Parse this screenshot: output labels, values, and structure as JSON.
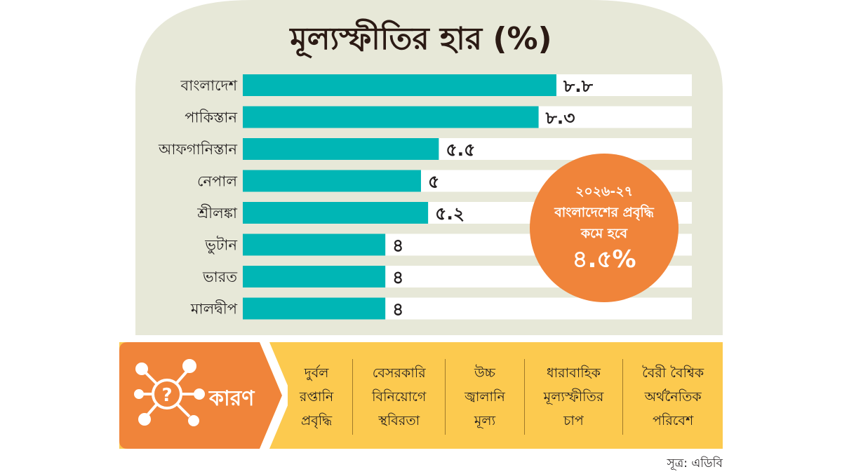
{
  "chart_data": {
    "type": "bar",
    "orientation": "horizontal",
    "title": "মূল্যস্ফীতির হার (%)",
    "categories": [
      "বাংলাদেশ",
      "পাকিস্তান",
      "আফগানিস্তান",
      "নেপাল",
      "শ্রীলঙ্কা",
      "ভুটান",
      "ভারত",
      "মালদ্বীপ"
    ],
    "values": [
      8.8,
      8.3,
      5.5,
      5,
      5.2,
      4,
      4,
      4
    ],
    "value_labels": [
      "৮.৮",
      "৮.৩",
      "৫.৫",
      "৫",
      "৫.২",
      "৪",
      "৪",
      "৪"
    ],
    "xlim": [
      0,
      12.6
    ],
    "grid": false,
    "colors": {
      "bar": "#00b6b5",
      "track": "#ffffff",
      "panel": "#e7e8d8"
    }
  },
  "callout": {
    "line1": "২০২৬-২৭",
    "line2": "বাংলাদেশের প্রবৃদ্ধি",
    "line3": "কমে হবে",
    "value": "৪.৫%",
    "color": "#f0843a"
  },
  "reasons": {
    "heading": "কারণ",
    "heading_icon": "question-network-icon",
    "colors": {
      "head": "#f0843a",
      "body": "#fcca4f"
    },
    "items": [
      {
        "lines": [
          "দুর্বল",
          "রপ্তানি",
          "প্রবৃদ্ধি"
        ]
      },
      {
        "lines": [
          "বেসরকারি",
          "বিনিয়োগে",
          "স্থবিরতা"
        ]
      },
      {
        "lines": [
          "উচ্চ",
          "জ্বালানি",
          "মূল্য"
        ]
      },
      {
        "lines": [
          "ধারাবাহিক",
          "মূল্যস্ফীতির",
          "চাপ"
        ]
      },
      {
        "lines": [
          "বৈরী বৈশ্বিক",
          "অর্থনৈতিক",
          "পরিবেশ"
        ]
      }
    ]
  },
  "source": "সূত্র: এডিবি"
}
